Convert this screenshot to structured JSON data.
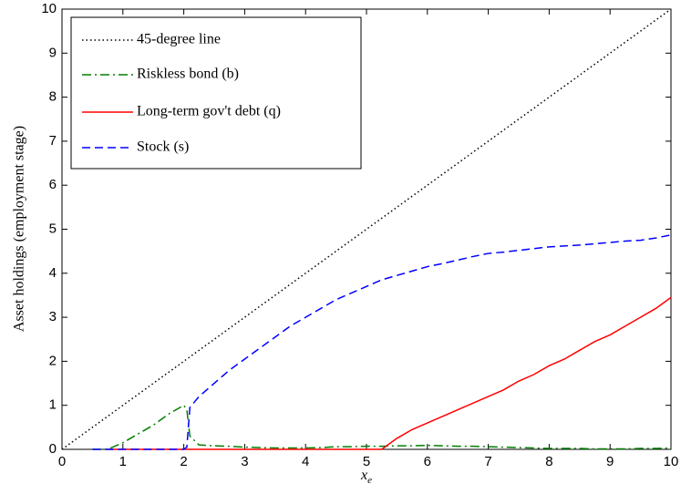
{
  "chart_data": {
    "type": "line",
    "xlabel": {
      "base": "x",
      "sub": "e"
    },
    "ylabel": "Asset holdings (employment stage)",
    "x": [
      0,
      0.5,
      0.75,
      1,
      1.25,
      1.5,
      1.75,
      2,
      2.05,
      2.1,
      2.25,
      2.5,
      2.75,
      3,
      3.25,
      3.5,
      3.75,
      4,
      4.25,
      4.5,
      4.75,
      5,
      5.25,
      5.5,
      5.75,
      6,
      6.25,
      6.5,
      6.75,
      7,
      7.25,
      7.5,
      7.75,
      8,
      8.25,
      8.5,
      8.75,
      9,
      9.25,
      9.5,
      9.75,
      10
    ],
    "series": [
      {
        "name": "45-degree line",
        "color": "#000000",
        "dash": "1.5 3",
        "values": [
          0,
          0.5,
          0.75,
          1,
          1.25,
          1.5,
          1.75,
          2,
          2.05,
          2.1,
          2.25,
          2.5,
          2.75,
          3,
          3.25,
          3.5,
          3.75,
          4,
          4.25,
          4.5,
          4.75,
          5,
          5.25,
          5.5,
          5.75,
          6,
          6.25,
          6.5,
          6.75,
          7,
          7.25,
          7.5,
          7.75,
          8,
          8.25,
          8.5,
          8.75,
          9,
          9.25,
          9.5,
          9.75,
          10
        ]
      },
      {
        "name": "Riskless bond (b)",
        "color": "#007f00",
        "dash": "10 4 2 4",
        "values": [
          null,
          0,
          0,
          0.15,
          0.35,
          0.55,
          0.8,
          1.0,
          0.9,
          0.3,
          0.1,
          0.08,
          0.07,
          0.05,
          0.04,
          0.03,
          0.03,
          0.03,
          0.04,
          0.06,
          0.06,
          0.07,
          0.07,
          0.08,
          0.08,
          0.09,
          0.08,
          0.07,
          0.07,
          0.06,
          0.05,
          0.04,
          0.03,
          0.02,
          0.02,
          0.02,
          0.01,
          0.01,
          0.01,
          0.02,
          0.02,
          0.03
        ]
      },
      {
        "name": "Long-term gov't debt (q)",
        "color": "#ff0000",
        "dash": "",
        "values": [
          null,
          null,
          0,
          0,
          0,
          0,
          0,
          0,
          0,
          0,
          0,
          0,
          0,
          0,
          0,
          0,
          0,
          0,
          0,
          0,
          0,
          0,
          0,
          0.25,
          0.45,
          0.6,
          0.75,
          0.9,
          1.05,
          1.2,
          1.35,
          1.55,
          1.7,
          1.9,
          2.05,
          2.25,
          2.45,
          2.6,
          2.8,
          3.0,
          3.2,
          3.45
        ]
      },
      {
        "name": "Stock (s)",
        "color": "#0000ff",
        "dash": "9 5",
        "values": [
          null,
          0,
          0,
          0,
          0,
          0,
          0,
          0,
          0.05,
          0.95,
          1.2,
          1.5,
          1.8,
          2.05,
          2.3,
          2.55,
          2.8,
          3.0,
          3.2,
          3.4,
          3.55,
          3.7,
          3.85,
          3.95,
          4.05,
          4.15,
          4.22,
          4.3,
          4.38,
          4.45,
          4.48,
          4.52,
          4.56,
          4.6,
          4.62,
          4.64,
          4.67,
          4.7,
          4.73,
          4.75,
          4.8,
          4.87
        ]
      }
    ],
    "xlim": [
      0,
      10
    ],
    "ylim": [
      0,
      10
    ],
    "xticks": [
      0,
      1,
      2,
      3,
      4,
      5,
      6,
      7,
      8,
      9,
      10
    ],
    "yticks": [
      0,
      1,
      2,
      3,
      4,
      5,
      6,
      7,
      8,
      9,
      10
    ],
    "legend": "upper-left"
  }
}
